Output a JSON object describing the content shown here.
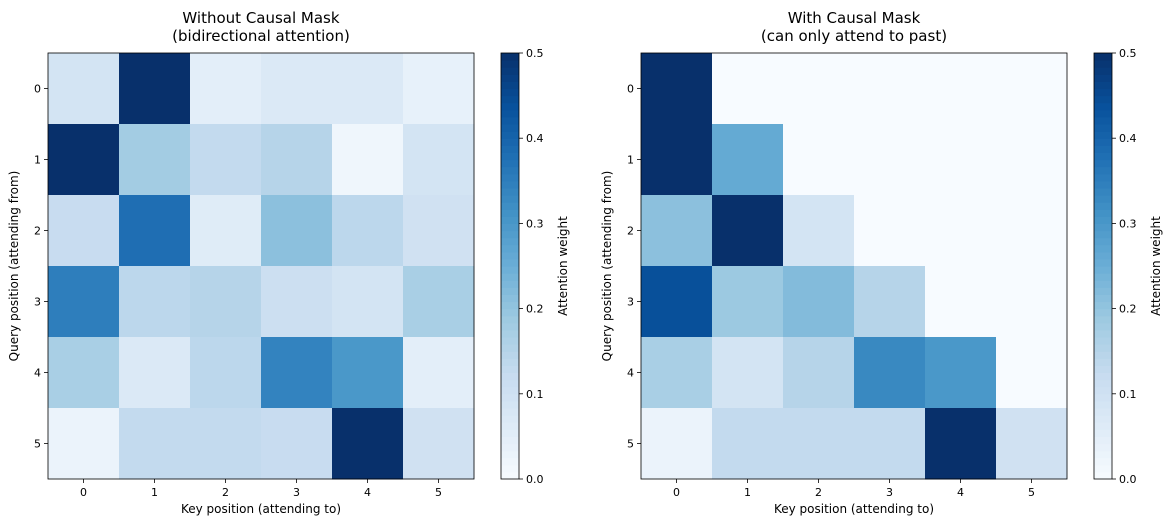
{
  "chart_data": [
    {
      "type": "heatmap",
      "title": "Without Causal Mask\n(bidirectional attention)",
      "xlabel": "Key position (attending to)",
      "ylabel": "Query position (attending from)",
      "x_categories": [
        "0",
        "1",
        "2",
        "3",
        "4",
        "5"
      ],
      "y_categories": [
        "0",
        "1",
        "2",
        "3",
        "4",
        "5"
      ],
      "values": [
        [
          0.09,
          0.5,
          0.05,
          0.07,
          0.07,
          0.04
        ],
        [
          0.5,
          0.18,
          0.13,
          0.15,
          0.02,
          0.09
        ],
        [
          0.12,
          0.38,
          0.06,
          0.21,
          0.14,
          0.1
        ],
        [
          0.35,
          0.14,
          0.15,
          0.11,
          0.09,
          0.17
        ],
        [
          0.17,
          0.07,
          0.14,
          0.34,
          0.3,
          0.05
        ],
        [
          0.03,
          0.13,
          0.13,
          0.12,
          0.5,
          0.1
        ]
      ],
      "colorbar": {
        "label": "Attention weight",
        "range": [
          0.0,
          0.5
        ],
        "ticks": [
          "0.0",
          "0.1",
          "0.2",
          "0.3",
          "0.4",
          "0.5"
        ]
      }
    },
    {
      "type": "heatmap",
      "title": "With Causal Mask\n(can only attend to past)",
      "xlabel": "Key position (attending to)",
      "ylabel": "Query position (attending from)",
      "x_categories": [
        "0",
        "1",
        "2",
        "3",
        "4",
        "5"
      ],
      "y_categories": [
        "0",
        "1",
        "2",
        "3",
        "4",
        "5"
      ],
      "values": [
        [
          0.5,
          0.0,
          0.0,
          0.0,
          0.0,
          0.0
        ],
        [
          0.5,
          0.26,
          0.0,
          0.0,
          0.0,
          0.0
        ],
        [
          0.21,
          0.5,
          0.09,
          0.0,
          0.0,
          0.0
        ],
        [
          0.44,
          0.19,
          0.22,
          0.15,
          0.0,
          0.0
        ],
        [
          0.17,
          0.09,
          0.15,
          0.33,
          0.3,
          0.0
        ],
        [
          0.03,
          0.13,
          0.13,
          0.13,
          0.5,
          0.1
        ]
      ],
      "colorbar": {
        "label": "Attention weight",
        "range": [
          0.0,
          0.5
        ],
        "ticks": [
          "0.0",
          "0.1",
          "0.2",
          "0.3",
          "0.4",
          "0.5"
        ]
      }
    }
  ]
}
